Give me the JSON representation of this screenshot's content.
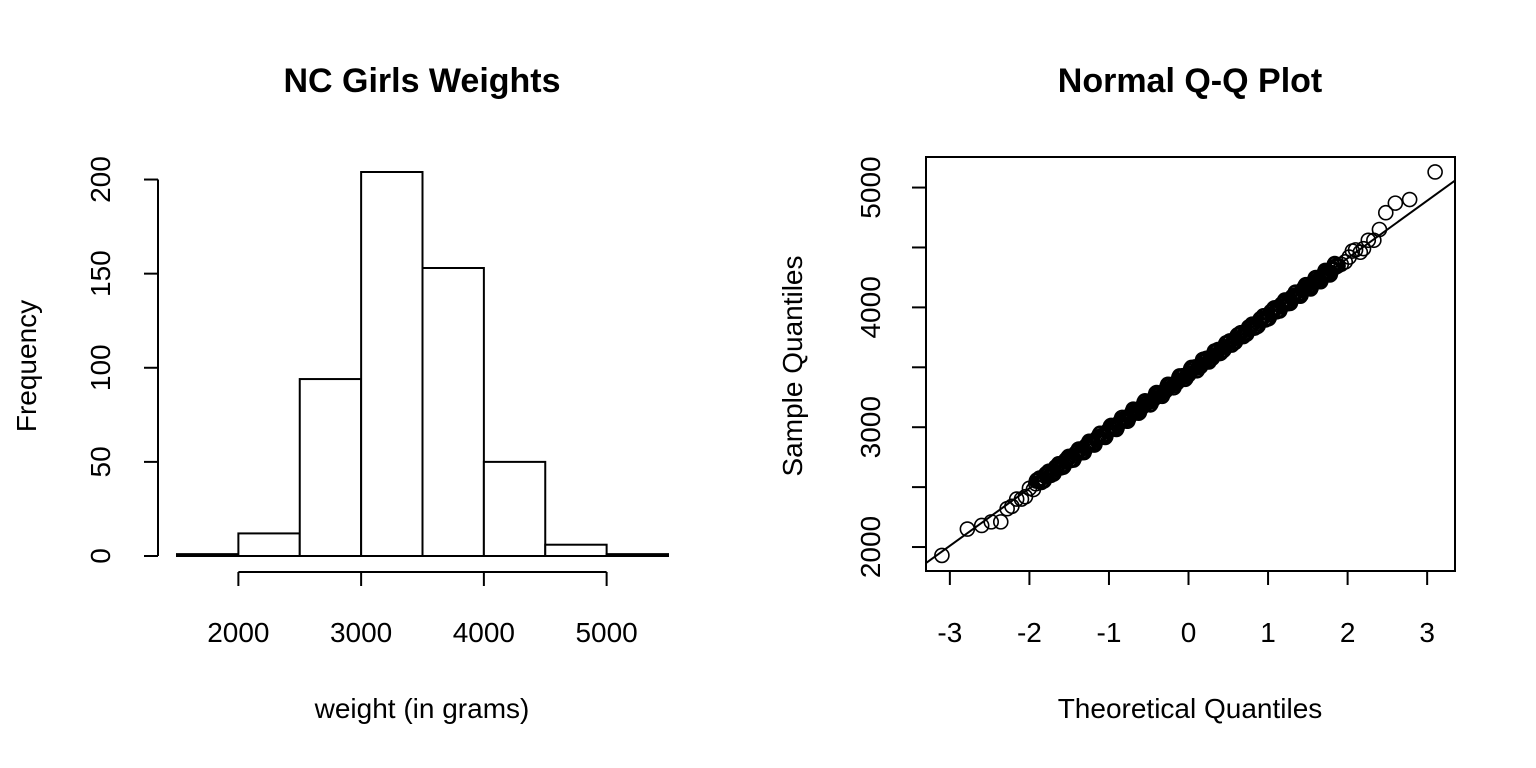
{
  "chart_data": [
    {
      "type": "bar",
      "title": "NC Girls Weights",
      "xlabel": "weight (in grams)",
      "ylabel": "Frequency",
      "bins": [
        {
          "from": 1500,
          "to": 2000,
          "count": 1
        },
        {
          "from": 2000,
          "to": 2500,
          "count": 12
        },
        {
          "from": 2500,
          "to": 3000,
          "count": 94
        },
        {
          "from": 3000,
          "to": 3500,
          "count": 204
        },
        {
          "from": 3500,
          "to": 4000,
          "count": 153
        },
        {
          "from": 4000,
          "to": 4500,
          "count": 50
        },
        {
          "from": 4500,
          "to": 5000,
          "count": 6
        },
        {
          "from": 5000,
          "to": 5500,
          "count": 1
        }
      ],
      "xticks": [
        2000,
        3000,
        4000,
        5000
      ],
      "yticks": [
        0,
        50,
        100,
        150,
        200
      ],
      "xlim": [
        1500,
        5500
      ],
      "ylim": [
        0,
        204
      ],
      "grid": false
    },
    {
      "type": "scatter",
      "title": "Normal Q-Q Plot",
      "xlabel": "Theoretical Quantiles",
      "ylabel": "Sample Quantiles",
      "xticks": [
        -3,
        -2,
        -1,
        0,
        1,
        2,
        3
      ],
      "yticks": [
        2000,
        2500,
        3000,
        3500,
        4000,
        4500,
        5000
      ],
      "xlim": [
        -3.3,
        3.35
      ],
      "ylim": [
        1800,
        5255
      ],
      "reference_line": {
        "intercept": 3450,
        "slope": 480
      },
      "tail_points": [
        {
          "x": -3.1,
          "y": 1930
        },
        {
          "x": -2.78,
          "y": 2150
        },
        {
          "x": -2.6,
          "y": 2180
        },
        {
          "x": -2.48,
          "y": 2210
        },
        {
          "x": -2.36,
          "y": 2210
        },
        {
          "x": -2.28,
          "y": 2320
        },
        {
          "x": -2.22,
          "y": 2340
        },
        {
          "x": -2.16,
          "y": 2400
        },
        {
          "x": -2.1,
          "y": 2400
        },
        {
          "x": -2.05,
          "y": 2420
        },
        {
          "x": -2.0,
          "y": 2490
        },
        {
          "x": -1.95,
          "y": 2480
        },
        {
          "x": 1.92,
          "y": 4360
        },
        {
          "x": 1.97,
          "y": 4380
        },
        {
          "x": 2.02,
          "y": 4420
        },
        {
          "x": 2.06,
          "y": 4470
        },
        {
          "x": 2.1,
          "y": 4480
        },
        {
          "x": 2.16,
          "y": 4460
        },
        {
          "x": 2.2,
          "y": 4490
        },
        {
          "x": 2.26,
          "y": 4560
        },
        {
          "x": 2.33,
          "y": 4560
        },
        {
          "x": 2.4,
          "y": 4650
        },
        {
          "x": 2.48,
          "y": 4790
        },
        {
          "x": 2.6,
          "y": 4870
        },
        {
          "x": 2.78,
          "y": 4900
        },
        {
          "x": 3.1,
          "y": 5130
        }
      ],
      "central_range": [
        -1.92,
        1.88
      ],
      "central_count": 470,
      "grid": false
    }
  ]
}
